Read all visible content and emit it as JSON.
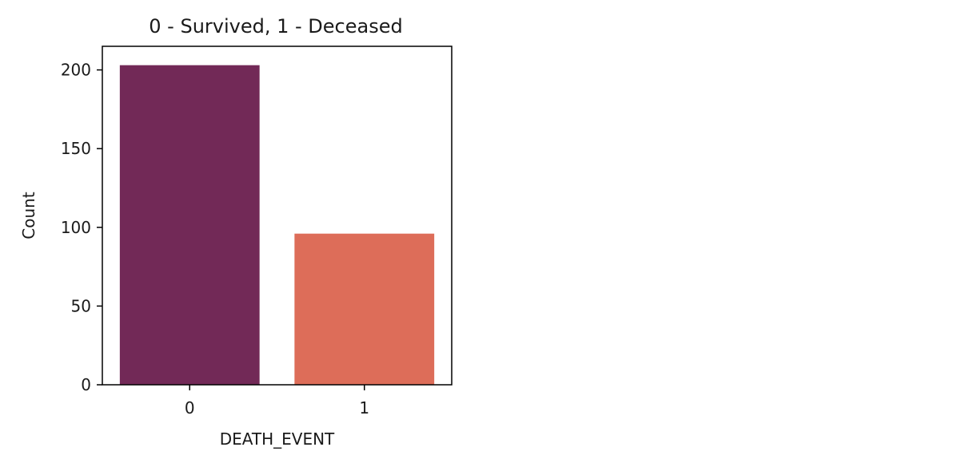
{
  "chart_data": {
    "type": "bar",
    "title": "0 - Survived, 1 - Deceased",
    "xlabel": "DEATH_EVENT",
    "ylabel": "Count",
    "categories": [
      "0",
      "1"
    ],
    "values": [
      203,
      96
    ],
    "colors": [
      "#722957",
      "#dd6d59"
    ],
    "ylim": [
      0,
      215
    ],
    "yticks": [
      0,
      50,
      100,
      150,
      200
    ],
    "grid": false
  }
}
